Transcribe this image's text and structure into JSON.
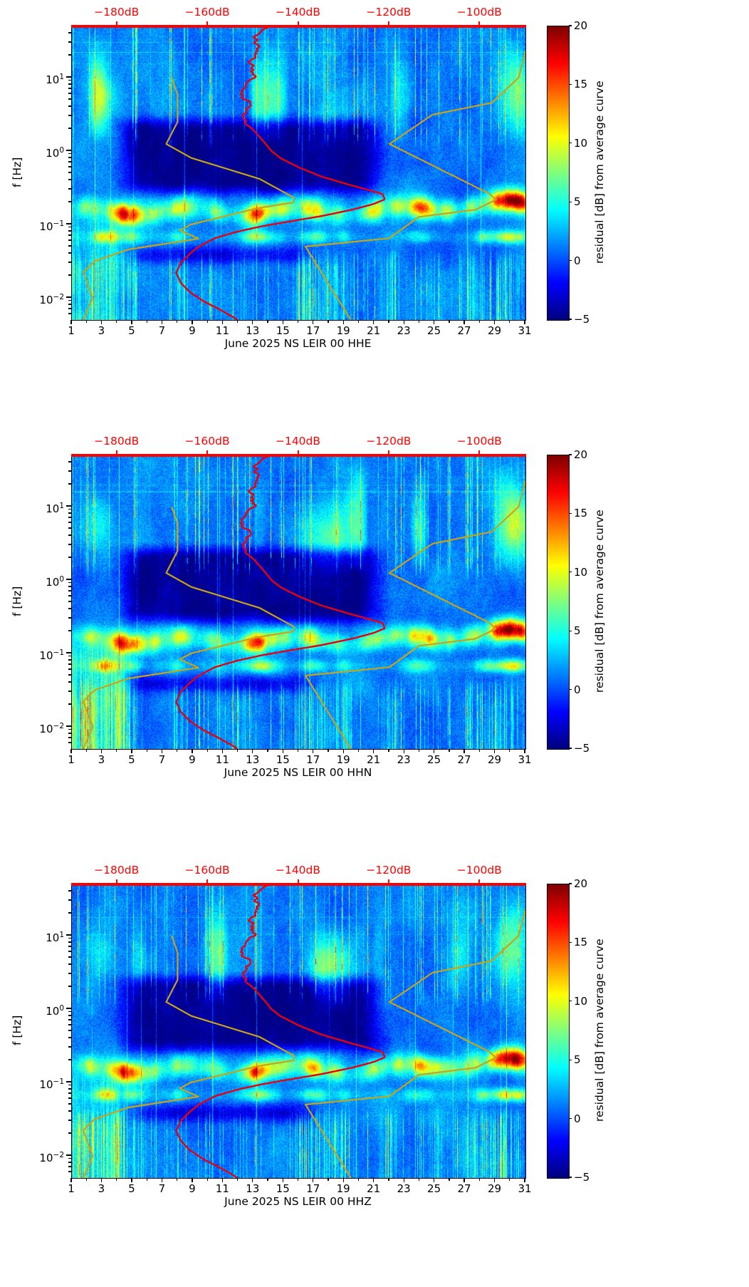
{
  "panels": [
    {
      "channel": "HHE",
      "xlabel": "June 2025 NS LEIR 00 HHE"
    },
    {
      "channel": "HHN",
      "xlabel": "June 2025 NS LEIR 00 HHN"
    },
    {
      "channel": "HHZ",
      "xlabel": "June 2025 NS LEIR 00 HHZ"
    }
  ],
  "shared": {
    "ylabel": "f [Hz]",
    "colorbar_label": "residual [dB] from average curve",
    "x_tick_labels": [
      1,
      3,
      5,
      7,
      9,
      11,
      13,
      15,
      17,
      19,
      21,
      23,
      25,
      27,
      29,
      31
    ],
    "y_tick_exponents": [
      1,
      0,
      -1,
      -2
    ],
    "top_axis_ticks": [
      {
        "db": -180,
        "label": "−180dB"
      },
      {
        "db": -160,
        "label": "−160dB"
      },
      {
        "db": -140,
        "label": "−140dB"
      },
      {
        "db": -120,
        "label": "−120dB"
      },
      {
        "db": -100,
        "label": "−100dB"
      }
    ],
    "colorbar_ticks": [
      {
        "value": 20,
        "label": "20"
      },
      {
        "value": 15,
        "label": "15"
      },
      {
        "value": 10,
        "label": "10"
      },
      {
        "value": 5,
        "label": "5"
      },
      {
        "value": 0,
        "label": "0"
      },
      {
        "value": -5,
        "label": "−5"
      }
    ]
  },
  "chart_data": {
    "type": "heatmap",
    "subtype": "seismic PSD residual spectrograms, 3 stacked panels (channels HHE, HHN, HHZ)",
    "station": "NS LEIR 00",
    "month": "June 2025",
    "panel_xlabels": [
      "June 2025 NS LEIR 00 HHE",
      "June 2025 NS LEIR 00 HHN",
      "June 2025 NS LEIR 00 HHZ"
    ],
    "x_axis": {
      "unit": "day of month",
      "range": [
        1,
        31
      ],
      "ticks": [
        1,
        3,
        5,
        7,
        9,
        11,
        13,
        15,
        17,
        19,
        21,
        23,
        25,
        27,
        29,
        31
      ]
    },
    "y_axis": {
      "label": "f [Hz]",
      "scale": "log",
      "range_hz": [
        0.005,
        50
      ],
      "decade_ticks_hz": [
        0.01,
        0.1,
        1,
        10
      ]
    },
    "color_axis": {
      "label": "residual [dB] from average curve",
      "range_db": [
        -5,
        20
      ],
      "ticks_db": [
        -5,
        0,
        5,
        10,
        15,
        20
      ],
      "colormap": "jet"
    },
    "top_axis": {
      "range_db": [
        -190,
        -90
      ],
      "ticks_db": [
        -180,
        -160,
        -140,
        -120,
        -100
      ],
      "tick_labels": [
        "−180dB",
        "−160dB",
        "−140dB",
        "−120dB",
        "−100dB"
      ],
      "color": "#ff0000"
    },
    "overlay_curves": {
      "station_average_psd": {
        "color": "#e8000d",
        "points_hz_db": [
          [
            50,
            -147
          ],
          [
            35,
            -148.5
          ],
          [
            25,
            -149.5
          ],
          [
            18,
            -150.5
          ],
          [
            12,
            -151
          ],
          [
            8,
            -151.5
          ],
          [
            5,
            -152
          ],
          [
            3.5,
            -152.3
          ],
          [
            2.5,
            -151.5
          ],
          [
            1.8,
            -149.5
          ],
          [
            1.3,
            -147.5
          ],
          [
            1.0,
            -146
          ],
          [
            0.8,
            -144
          ],
          [
            0.6,
            -140
          ],
          [
            0.45,
            -135
          ],
          [
            0.35,
            -129
          ],
          [
            0.3,
            -125
          ],
          [
            0.26,
            -121.5
          ],
          [
            0.22,
            -121
          ],
          [
            0.19,
            -123.5
          ],
          [
            0.16,
            -128
          ],
          [
            0.13,
            -135
          ],
          [
            0.11,
            -142
          ],
          [
            0.095,
            -148
          ],
          [
            0.08,
            -153.5
          ],
          [
            0.065,
            -158.5
          ],
          [
            0.05,
            -162
          ],
          [
            0.04,
            -164
          ],
          [
            0.03,
            -166
          ],
          [
            0.022,
            -167
          ],
          [
            0.016,
            -166
          ],
          [
            0.012,
            -164
          ],
          [
            0.009,
            -161
          ],
          [
            0.007,
            -157.5
          ],
          [
            0.0055,
            -154.5
          ],
          [
            0.005,
            -153.5
          ]
        ]
      },
      "noise_model_low": {
        "color": "#c8a318",
        "points_hz_db": [
          [
            10,
            -168.0
          ],
          [
            5.88,
            -166.7
          ],
          [
            2.5,
            -166.7
          ],
          [
            1.25,
            -169.2
          ],
          [
            0.806,
            -163.7
          ],
          [
            0.417,
            -148.6
          ],
          [
            0.233,
            -141.1
          ],
          [
            0.2,
            -141.1
          ],
          [
            0.167,
            -149.0
          ],
          [
            0.1,
            -163.8
          ],
          [
            0.0833,
            -166.2
          ],
          [
            0.0641,
            -162.1
          ],
          [
            0.0457,
            -177.5
          ],
          [
            0.0316,
            -185.0
          ],
          [
            0.0222,
            -187.5
          ],
          [
            0.01,
            -185.4
          ],
          [
            0.005,
            -187.5
          ]
        ]
      },
      "noise_model_high": {
        "color": "#c8a318",
        "points_hz_db": [
          [
            50,
            -88.5
          ],
          [
            10,
            -91.5
          ],
          [
            4.55,
            -97.4
          ],
          [
            3.13,
            -110.5
          ],
          [
            1.25,
            -120.0
          ],
          [
            0.263,
            -98.0
          ],
          [
            0.217,
            -96.5
          ],
          [
            0.159,
            -101.0
          ],
          [
            0.127,
            -113.5
          ],
          [
            0.0649,
            -120.0
          ],
          [
            0.05,
            -138.5
          ],
          [
            0.005,
            -128.5
          ]
        ]
      }
    },
    "texture_model": {
      "note": "approximate reconstruction of the residual field; residual in dB vs station average",
      "microseism_band_center_hz": 0.15,
      "microseism_bumps_day_width_amp": [
        [
          2.2,
          0.7,
          5
        ],
        [
          4.6,
          1.1,
          13
        ],
        [
          6.5,
          0.6,
          4
        ],
        [
          8.2,
          0.8,
          6
        ],
        [
          10.5,
          0.7,
          4
        ],
        [
          13.3,
          1.0,
          12
        ],
        [
          15.0,
          0.6,
          5
        ],
        [
          16.9,
          0.7,
          8
        ],
        [
          18.5,
          0.6,
          4
        ],
        [
          21.0,
          0.8,
          6
        ],
        [
          22.5,
          0.5,
          4
        ],
        [
          24.3,
          1.1,
          10
        ],
        [
          26.0,
          0.5,
          4
        ],
        [
          27.5,
          0.6,
          5
        ],
        [
          29.2,
          0.7,
          9
        ],
        [
          30.4,
          1.0,
          16
        ]
      ],
      "secondary_band_center_hz": 0.068,
      "secondary_bumps_day_width_amp": [
        [
          3.3,
          0.8,
          7
        ],
        [
          5.0,
          0.6,
          4
        ],
        [
          8.0,
          0.5,
          3
        ],
        [
          13.4,
          1.0,
          7
        ],
        [
          17.0,
          0.8,
          5
        ],
        [
          19.0,
          0.5,
          3
        ],
        [
          24.0,
          0.8,
          4
        ],
        [
          28.2,
          0.6,
          4
        ],
        [
          30.0,
          1.2,
          9
        ]
      ],
      "quiet_wedge": {
        "days": [
          4,
          22
        ],
        "hz": [
          0.22,
          2.5
        ],
        "residual_db": -5
      },
      "bottom_stripe_bumps_day_width_amp": [
        [
          2.0,
          1.1,
          7
        ],
        [
          4.3,
          1.0,
          8
        ],
        [
          8.0,
          0.4,
          4
        ],
        [
          12.0,
          0.5,
          3
        ],
        [
          16.8,
          1.2,
          6
        ],
        [
          19.0,
          0.6,
          5
        ],
        [
          22.0,
          0.5,
          5
        ],
        [
          25.0,
          0.5,
          3
        ],
        [
          27.5,
          0.6,
          4
        ],
        [
          29.5,
          1.2,
          6
        ]
      ]
    }
  }
}
